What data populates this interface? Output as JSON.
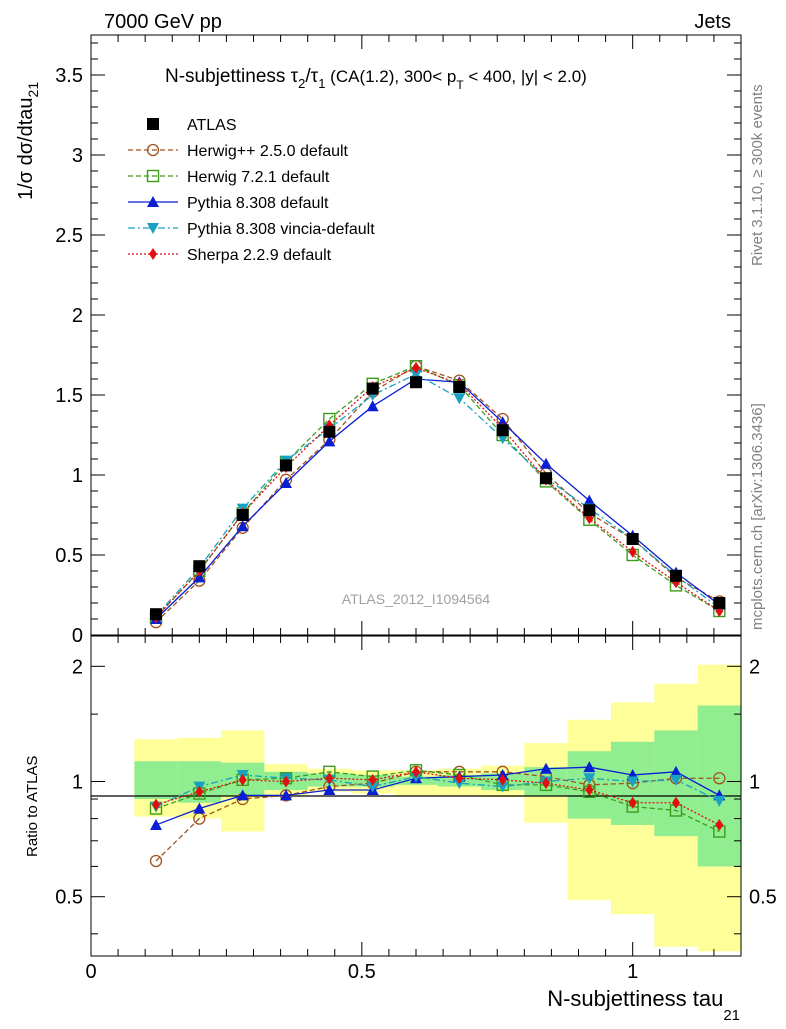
{
  "header": {
    "left": "7000 GeV pp",
    "right": "Jets",
    "side_top": "Rivet 3.1.10, ≥ 300k events",
    "side_bottom": "mcplots.cern.ch [arXiv:1306.3436]",
    "watermark": "ATLAS_2012_I1094564"
  },
  "title": {
    "main": "N-subjettiness τ",
    "sub2": "2",
    "slash": "/τ",
    "sub1": "1",
    "rest": " (CA(1.2), 300< p",
    "subT": "T",
    "end": " < 400, |y| < 2.0)"
  },
  "axes": {
    "ylabel_main": "1/σ dσ/dtau",
    "ylabel_sub": "21",
    "ylabel_ratio": "Ratio to ATLAS",
    "xlabel_main": "N-subjettiness tau",
    "xlabel_sub": "21",
    "main_ticks": [
      "0",
      "0.5",
      "1",
      "1.5",
      "2",
      "2.5",
      "3",
      "3.5"
    ],
    "ratio_ticks": [
      "0.5",
      "1",
      "2"
    ],
    "x_ticks": [
      "0",
      "0.5",
      "1"
    ]
  },
  "colors": {
    "atlas": "#000000",
    "herwigpp": "#a0521c",
    "herwig7": "#3c9c1c",
    "pythia": "#0a1fd4",
    "vincia": "#1aa0c0",
    "sherpa": "#e01010",
    "band_inner": "#90ee90",
    "band_outer": "#ffff99"
  },
  "legend": [
    {
      "key": "atlas",
      "label": "ATLAS"
    },
    {
      "key": "herwigpp",
      "label": "Herwig++ 2.5.0 default"
    },
    {
      "key": "herwig7",
      "label": "Herwig 7.2.1 default"
    },
    {
      "key": "pythia",
      "label": "Pythia 8.308 default"
    },
    {
      "key": "vincia",
      "label": "Pythia 8.308 vincia-default"
    },
    {
      "key": "sherpa",
      "label": "Sherpa 2.2.9 default"
    }
  ],
  "chart_data": [
    {
      "type": "line",
      "panel": "main",
      "xlim": [
        0,
        1.2
      ],
      "ylim": [
        0,
        3.75
      ],
      "x": [
        0.12,
        0.2,
        0.28,
        0.36,
        0.44,
        0.52,
        0.6,
        0.68,
        0.76,
        0.84,
        0.92,
        1.0,
        1.08,
        1.16
      ],
      "series": [
        {
          "name": "ATLAS",
          "key": "atlas",
          "values": [
            0.13,
            0.43,
            0.75,
            1.06,
            1.27,
            1.54,
            1.58,
            1.55,
            1.28,
            0.98,
            0.78,
            0.6,
            0.37,
            0.2
          ]
        },
        {
          "name": "Herwig++ 2.5.0 default",
          "key": "herwigpp",
          "values": [
            0.08,
            0.34,
            0.67,
            0.97,
            1.22,
            1.52,
            1.68,
            1.59,
            1.35,
            1.01,
            0.76,
            0.6,
            0.36,
            0.21
          ]
        },
        {
          "name": "Herwig 7.2.1 default",
          "key": "herwig7",
          "values": [
            0.11,
            0.4,
            0.76,
            1.08,
            1.35,
            1.57,
            1.68,
            1.56,
            1.25,
            0.96,
            0.72,
            0.5,
            0.31,
            0.15
          ]
        },
        {
          "name": "Pythia 8.308 default",
          "key": "pythia",
          "values": [
            0.1,
            0.36,
            0.68,
            0.95,
            1.21,
            1.43,
            1.6,
            1.58,
            1.33,
            1.07,
            0.84,
            0.62,
            0.39,
            0.19
          ]
        },
        {
          "name": "Pythia 8.308 vincia-default",
          "key": "vincia",
          "values": [
            0.12,
            0.42,
            0.79,
            1.09,
            1.29,
            1.5,
            1.63,
            1.48,
            1.23,
            0.98,
            0.79,
            0.6,
            0.37,
            0.17
          ]
        },
        {
          "name": "Sherpa 2.2.9 default",
          "key": "sherpa",
          "values": [
            0.11,
            0.4,
            0.76,
            1.05,
            1.31,
            1.55,
            1.67,
            1.57,
            1.29,
            0.97,
            0.73,
            0.52,
            0.33,
            0.15
          ]
        }
      ]
    },
    {
      "type": "line",
      "panel": "ratio",
      "yscale": "log",
      "xlim": [
        0,
        1.2
      ],
      "ylim": [
        0.35,
        2.4
      ],
      "x": [
        0.12,
        0.2,
        0.28,
        0.36,
        0.44,
        0.52,
        0.6,
        0.68,
        0.76,
        0.84,
        0.92,
        1.0,
        1.08,
        1.16
      ],
      "bands": {
        "bin_edges": [
          0.08,
          0.16,
          0.24,
          0.32,
          0.4,
          0.48,
          0.56,
          0.64,
          0.72,
          0.8,
          0.88,
          0.96,
          1.04,
          1.12,
          1.2
        ],
        "inner_low": [
          0.9,
          0.88,
          0.92,
          0.95,
          0.97,
          0.97,
          0.98,
          0.97,
          0.95,
          0.92,
          0.8,
          0.77,
          0.72,
          0.6
        ],
        "inner_high": [
          1.13,
          1.13,
          1.12,
          1.06,
          1.05,
          1.04,
          1.03,
          1.04,
          1.05,
          1.09,
          1.2,
          1.27,
          1.36,
          1.58
        ],
        "outer_low": [
          0.81,
          0.8,
          0.74,
          0.92,
          0.94,
          0.93,
          0.92,
          0.92,
          0.91,
          0.78,
          0.49,
          0.45,
          0.37,
          0.36
        ],
        "outer_high": [
          1.29,
          1.3,
          1.36,
          1.11,
          1.08,
          1.07,
          1.07,
          1.08,
          1.1,
          1.26,
          1.45,
          1.61,
          1.8,
          2.02
        ]
      },
      "series": [
        {
          "name": "Herwig++ 2.5.0 default",
          "key": "herwigpp",
          "values": [
            0.62,
            0.8,
            0.9,
            0.92,
            0.97,
            0.99,
            1.06,
            1.06,
            1.06,
            1.03,
            0.98,
            0.99,
            1.02,
            1.02
          ]
        },
        {
          "name": "Herwig 7.2.1 default",
          "key": "herwig7",
          "values": [
            0.85,
            0.93,
            1.01,
            1.02,
            1.06,
            1.03,
            1.07,
            1.04,
            0.98,
            0.98,
            0.94,
            0.86,
            0.84,
            0.74
          ]
        },
        {
          "name": "Pythia 8.308 default",
          "key": "pythia",
          "values": [
            0.77,
            0.85,
            0.92,
            0.92,
            0.95,
            0.95,
            1.02,
            1.03,
            1.04,
            1.08,
            1.09,
            1.04,
            1.06,
            0.92
          ]
        },
        {
          "name": "Pythia 8.308 vincia-default",
          "key": "vincia",
          "values": [
            0.86,
            0.97,
            1.04,
            1.02,
            1.01,
            0.97,
            1.03,
            0.99,
            0.97,
            1.0,
            1.02,
            1.0,
            1.01,
            0.89
          ]
        },
        {
          "name": "Sherpa 2.2.9 default",
          "key": "sherpa",
          "values": [
            0.87,
            0.94,
            1.01,
            1.0,
            1.02,
            1.01,
            1.06,
            1.02,
            1.01,
            0.99,
            0.95,
            0.88,
            0.88,
            0.77
          ]
        }
      ]
    }
  ]
}
